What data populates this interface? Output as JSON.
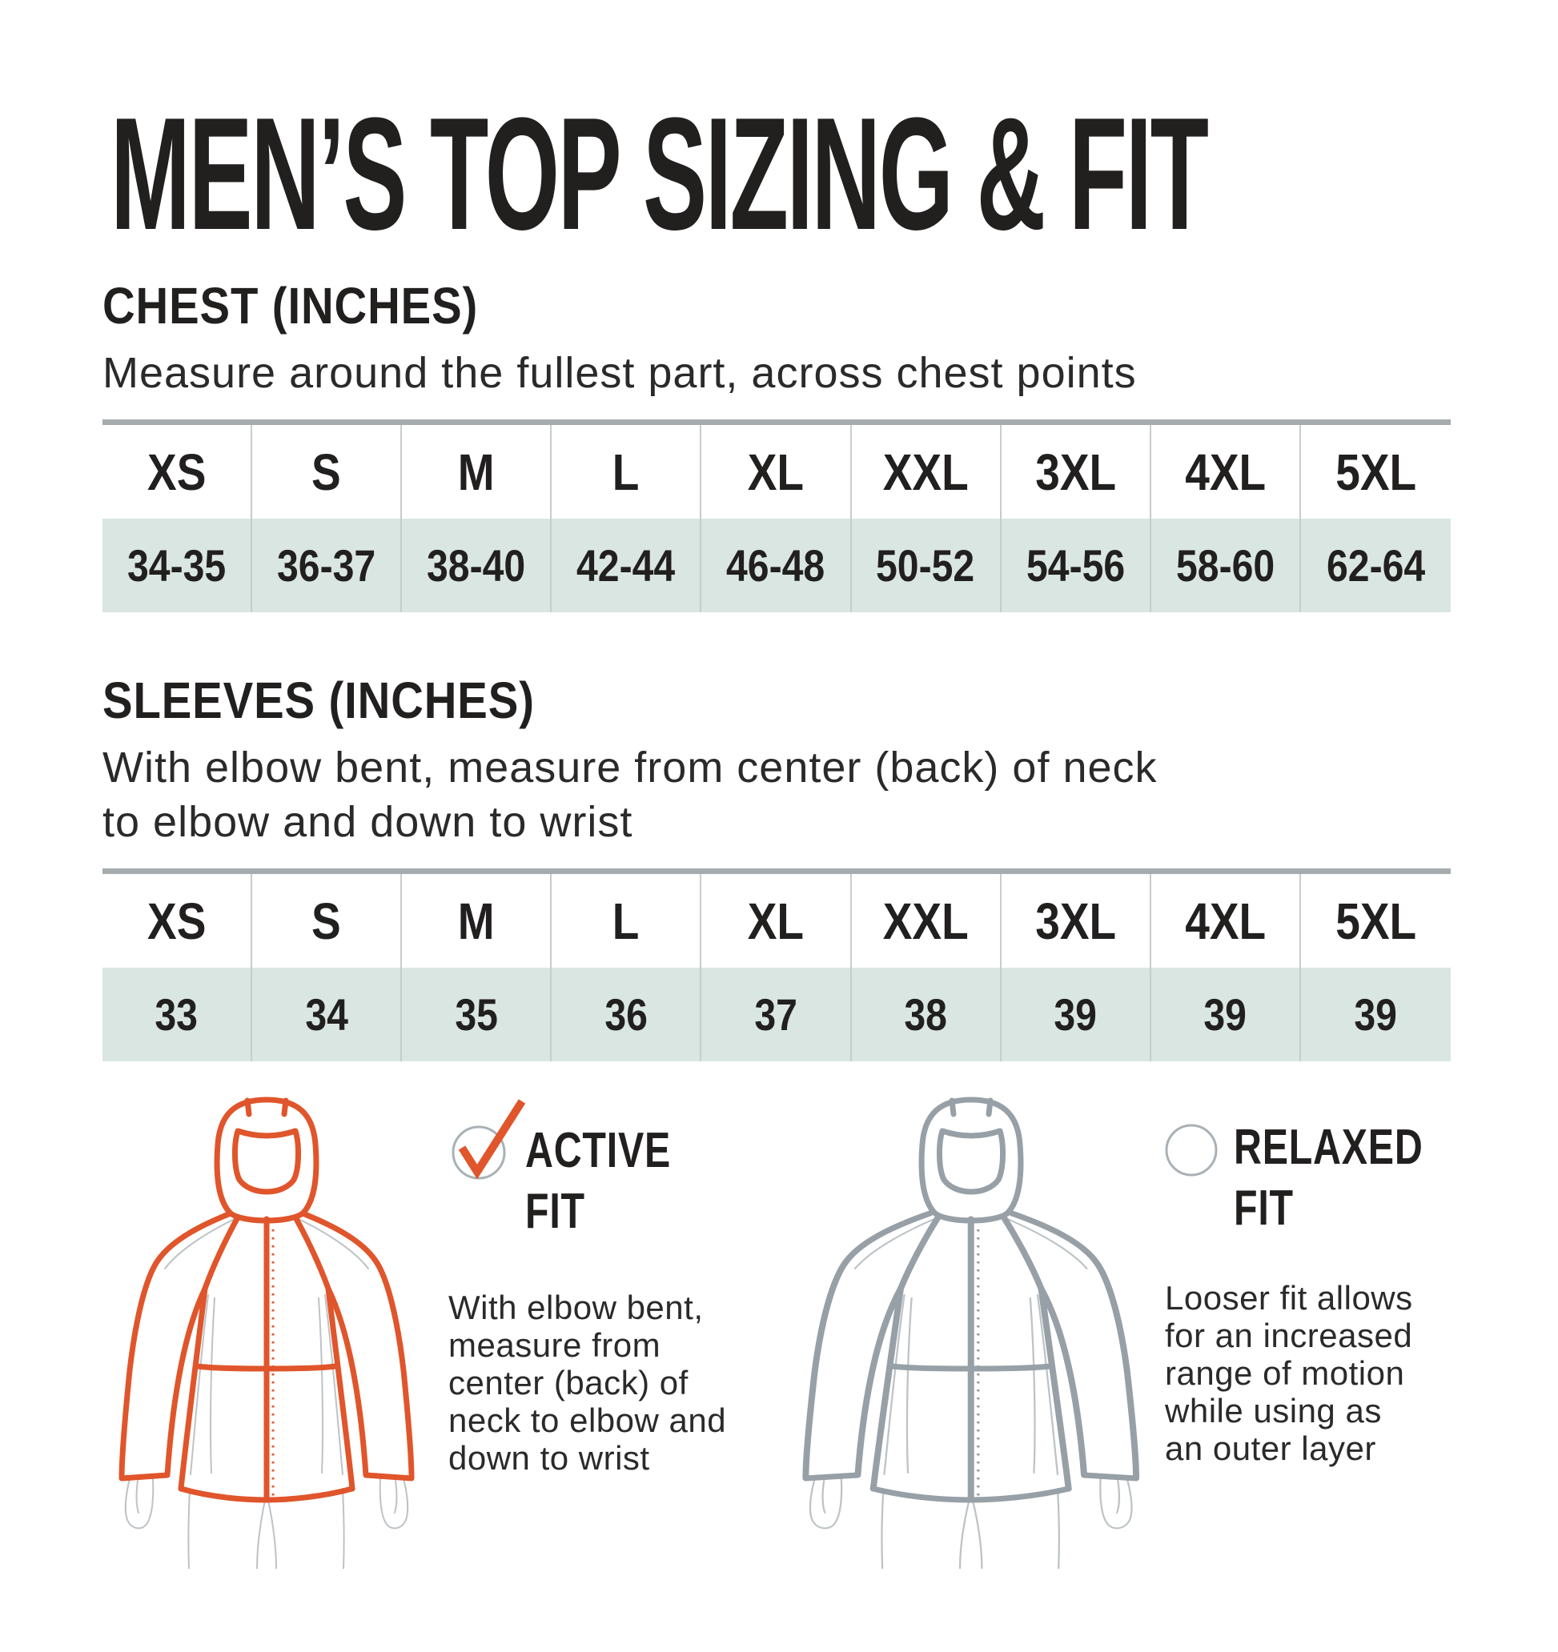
{
  "title": "MEN’S TOP SIZING & FIT",
  "chest": {
    "heading": "CHEST (INCHES)",
    "description": "Measure around the fullest part, across chest points",
    "sizes": [
      "XS",
      "S",
      "M",
      "L",
      "XL",
      "XXL",
      "3XL",
      "4XL",
      "5XL"
    ],
    "values": [
      "34-35",
      "36-37",
      "38-40",
      "42-44",
      "46-48",
      "50-52",
      "54-56",
      "58-60",
      "62-64"
    ]
  },
  "sleeves": {
    "heading": "SLEEVES (INCHES)",
    "description_lines": [
      "With elbow bent, measure from center (back) of neck",
      "to elbow and down to wrist"
    ],
    "sizes": [
      "XS",
      "S",
      "M",
      "L",
      "XL",
      "XXL",
      "3XL",
      "4XL",
      "5XL"
    ],
    "values": [
      "33",
      "34",
      "35",
      "36",
      "37",
      "38",
      "39",
      "39",
      "39"
    ]
  },
  "fits": {
    "active": {
      "title_line1": "ACTIVE",
      "title_line2": "FIT",
      "selected": true,
      "description_lines": [
        "With elbow bent,",
        "measure from",
        "center (back) of",
        "neck to elbow and",
        "down to wrist"
      ]
    },
    "relaxed": {
      "title_line1": "RELAXED",
      "title_line2": "FIT",
      "selected": false,
      "description_lines": [
        "Looser fit allows",
        "for an increased",
        "range of motion",
        "while using as",
        "an outer layer"
      ]
    }
  },
  "colors": {
    "accent_orange": "#e0552b",
    "table_row_bg": "#d9e6e2",
    "table_top_bar": "#a6acae",
    "column_divider": "#c7cdcd",
    "figure_gray": "#97a0a6",
    "body_outline_gray": "#bdc3c6",
    "text_black": "#221f1f"
  },
  "chart_data": [
    {
      "type": "table",
      "title": "CHEST (INCHES)",
      "note": "Measure around the fullest part, across chest points",
      "columns": [
        "XS",
        "S",
        "M",
        "L",
        "XL",
        "XXL",
        "3XL",
        "4XL",
        "5XL"
      ],
      "rows": [
        [
          "34-35",
          "36-37",
          "38-40",
          "42-44",
          "46-48",
          "50-52",
          "54-56",
          "58-60",
          "62-64"
        ]
      ]
    },
    {
      "type": "table",
      "title": "SLEEVES (INCHES)",
      "note": "With elbow bent, measure from center (back) of neck to elbow and down to wrist",
      "columns": [
        "XS",
        "S",
        "M",
        "L",
        "XL",
        "XXL",
        "3XL",
        "4XL",
        "5XL"
      ],
      "rows": [
        [
          "33",
          "34",
          "35",
          "36",
          "37",
          "38",
          "39",
          "39",
          "39"
        ]
      ]
    }
  ]
}
